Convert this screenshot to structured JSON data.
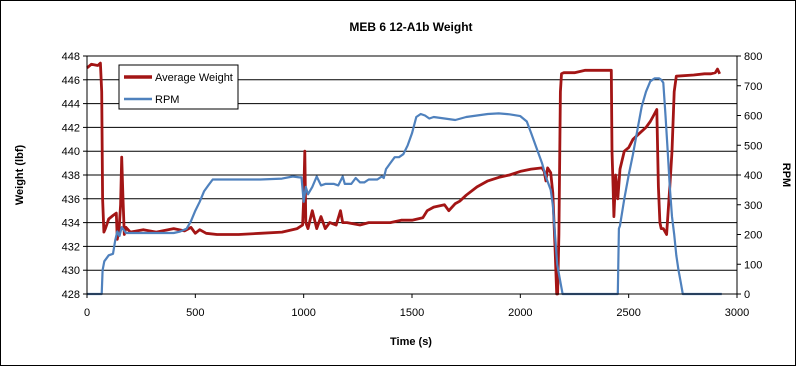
{
  "chart_data": {
    "type": "line",
    "title": "MEB 6 12-A1b Weight",
    "xlabel": "Time (s)",
    "ylabel": "Weight (lbf)",
    "y2label": "RPM",
    "xlim": [
      0,
      3000
    ],
    "ylim": [
      428,
      448
    ],
    "y2lim": [
      0,
      800
    ],
    "x_ticks": [
      0,
      500,
      1000,
      1500,
      2000,
      2500,
      3000
    ],
    "y_ticks": [
      428,
      430,
      432,
      434,
      436,
      438,
      440,
      442,
      444,
      446,
      448
    ],
    "y2_ticks": [
      0,
      100,
      200,
      300,
      400,
      500,
      600,
      700,
      800
    ],
    "grid": "horizontal",
    "legend_position": "top-left",
    "series": [
      {
        "name": "Average Weight",
        "axis": "left",
        "color": "#a31515",
        "points": [
          [
            0,
            447.0
          ],
          [
            20,
            447.3
          ],
          [
            50,
            447.2
          ],
          [
            62,
            447.4
          ],
          [
            68,
            445
          ],
          [
            72,
            436
          ],
          [
            78,
            433.2
          ],
          [
            85,
            433.5
          ],
          [
            100,
            434.3
          ],
          [
            120,
            434.6
          ],
          [
            135,
            434.8
          ],
          [
            140,
            432.6
          ],
          [
            148,
            433.5
          ],
          [
            155,
            435.5
          ],
          [
            160,
            439.5
          ],
          [
            166,
            436
          ],
          [
            172,
            433
          ],
          [
            180,
            433.6
          ],
          [
            200,
            433.2
          ],
          [
            260,
            433.4
          ],
          [
            320,
            433.2
          ],
          [
            400,
            433.5
          ],
          [
            450,
            433.3
          ],
          [
            480,
            433.6
          ],
          [
            500,
            433.1
          ],
          [
            520,
            433.4
          ],
          [
            550,
            433.1
          ],
          [
            600,
            433.0
          ],
          [
            700,
            433.0
          ],
          [
            800,
            433.1
          ],
          [
            900,
            433.2
          ],
          [
            970,
            433.5
          ],
          [
            995,
            433.8
          ],
          [
            1000,
            436
          ],
          [
            1005,
            440
          ],
          [
            1010,
            434
          ],
          [
            1020,
            433.5
          ],
          [
            1040,
            435
          ],
          [
            1060,
            433.5
          ],
          [
            1080,
            434.5
          ],
          [
            1100,
            433.5
          ],
          [
            1120,
            434
          ],
          [
            1150,
            433.8
          ],
          [
            1170,
            435
          ],
          [
            1180,
            434
          ],
          [
            1200,
            434
          ],
          [
            1260,
            433.8
          ],
          [
            1300,
            434
          ],
          [
            1350,
            434.0
          ],
          [
            1400,
            434.0
          ],
          [
            1450,
            434.2
          ],
          [
            1500,
            434.2
          ],
          [
            1550,
            434.4
          ],
          [
            1570,
            435
          ],
          [
            1600,
            435.3
          ],
          [
            1650,
            435.5
          ],
          [
            1670,
            435.0
          ],
          [
            1700,
            435.6
          ],
          [
            1720,
            435.8
          ],
          [
            1750,
            436.3
          ],
          [
            1800,
            437.0
          ],
          [
            1850,
            437.5
          ],
          [
            1900,
            437.8
          ],
          [
            1950,
            438.0
          ],
          [
            2000,
            438.3
          ],
          [
            2050,
            438.5
          ],
          [
            2100,
            438.6
          ],
          [
            2110,
            438.3
          ],
          [
            2118,
            437.5
          ],
          [
            2126,
            438.6
          ],
          [
            2140,
            438.2
          ],
          [
            2150,
            436.5
          ],
          [
            2160,
            432
          ],
          [
            2168,
            428
          ],
          [
            2172,
            428
          ],
          [
            2178,
            433
          ],
          [
            2185,
            445
          ],
          [
            2190,
            446.5
          ],
          [
            2200,
            446.6
          ],
          [
            2250,
            446.6
          ],
          [
            2300,
            446.8
          ],
          [
            2350,
            446.8
          ],
          [
            2400,
            446.8
          ],
          [
            2420,
            446.8
          ],
          [
            2423,
            440
          ],
          [
            2428,
            437
          ],
          [
            2432,
            434.5
          ],
          [
            2440,
            438
          ],
          [
            2450,
            436
          ],
          [
            2460,
            438.5
          ],
          [
            2480,
            440
          ],
          [
            2500,
            440.3
          ],
          [
            2520,
            441
          ],
          [
            2550,
            441.5
          ],
          [
            2580,
            442
          ],
          [
            2600,
            442.5
          ],
          [
            2615,
            443
          ],
          [
            2630,
            443.5
          ],
          [
            2637,
            437
          ],
          [
            2644,
            434
          ],
          [
            2650,
            433.5
          ],
          [
            2660,
            433.5
          ],
          [
            2675,
            433
          ],
          [
            2690,
            437
          ],
          [
            2700,
            440
          ],
          [
            2710,
            445
          ],
          [
            2720,
            446.3
          ],
          [
            2800,
            446.4
          ],
          [
            2850,
            446.5
          ],
          [
            2880,
            446.5
          ],
          [
            2900,
            446.6
          ],
          [
            2910,
            446.9
          ],
          [
            2920,
            446.5
          ]
        ]
      },
      {
        "name": "RPM",
        "axis": "right",
        "color": "#4f81bd",
        "points": [
          [
            0,
            0
          ],
          [
            60,
            0
          ],
          [
            68,
            0
          ],
          [
            72,
            80
          ],
          [
            80,
            110
          ],
          [
            100,
            130
          ],
          [
            120,
            135
          ],
          [
            130,
            180
          ],
          [
            140,
            210
          ],
          [
            150,
            195
          ],
          [
            160,
            225
          ],
          [
            170,
            215
          ],
          [
            180,
            205
          ],
          [
            200,
            205
          ],
          [
            300,
            205
          ],
          [
            400,
            205
          ],
          [
            430,
            210
          ],
          [
            460,
            220
          ],
          [
            480,
            245
          ],
          [
            500,
            280
          ],
          [
            520,
            310
          ],
          [
            540,
            345
          ],
          [
            560,
            365
          ],
          [
            580,
            385
          ],
          [
            620,
            385
          ],
          [
            700,
            385
          ],
          [
            800,
            385
          ],
          [
            900,
            388
          ],
          [
            950,
            395
          ],
          [
            980,
            392
          ],
          [
            990,
            392
          ],
          [
            1000,
            310
          ],
          [
            1010,
            360
          ],
          [
            1020,
            335
          ],
          [
            1040,
            360
          ],
          [
            1060,
            395
          ],
          [
            1080,
            365
          ],
          [
            1100,
            370
          ],
          [
            1120,
            370
          ],
          [
            1140,
            370
          ],
          [
            1160,
            365
          ],
          [
            1180,
            395
          ],
          [
            1190,
            370
          ],
          [
            1220,
            370
          ],
          [
            1240,
            390
          ],
          [
            1260,
            375
          ],
          [
            1280,
            375
          ],
          [
            1300,
            385
          ],
          [
            1340,
            385
          ],
          [
            1360,
            395
          ],
          [
            1370,
            390
          ],
          [
            1380,
            420
          ],
          [
            1400,
            440
          ],
          [
            1420,
            460
          ],
          [
            1440,
            460
          ],
          [
            1460,
            470
          ],
          [
            1480,
            500
          ],
          [
            1500,
            540
          ],
          [
            1520,
            595
          ],
          [
            1540,
            605
          ],
          [
            1560,
            600
          ],
          [
            1580,
            590
          ],
          [
            1600,
            595
          ],
          [
            1650,
            590
          ],
          [
            1700,
            585
          ],
          [
            1750,
            595
          ],
          [
            1800,
            600
          ],
          [
            1850,
            605
          ],
          [
            1900,
            607
          ],
          [
            1950,
            604
          ],
          [
            2000,
            598
          ],
          [
            2030,
            580
          ],
          [
            2050,
            540
          ],
          [
            2080,
            480
          ],
          [
            2100,
            440
          ],
          [
            2120,
            390
          ],
          [
            2140,
            350
          ],
          [
            2150,
            300
          ],
          [
            2160,
            200
          ],
          [
            2170,
            100
          ],
          [
            2180,
            60
          ],
          [
            2190,
            20
          ],
          [
            2195,
            0
          ],
          [
            2300,
            0
          ],
          [
            2440,
            0
          ],
          [
            2450,
            0
          ],
          [
            2455,
            220
          ],
          [
            2460,
            230
          ],
          [
            2480,
            320
          ],
          [
            2500,
            400
          ],
          [
            2520,
            470
          ],
          [
            2540,
            550
          ],
          [
            2560,
            630
          ],
          [
            2580,
            680
          ],
          [
            2600,
            715
          ],
          [
            2620,
            725
          ],
          [
            2640,
            725
          ],
          [
            2650,
            720
          ],
          [
            2660,
            710
          ],
          [
            2670,
            600
          ],
          [
            2680,
            480
          ],
          [
            2690,
            360
          ],
          [
            2700,
            260
          ],
          [
            2710,
            200
          ],
          [
            2720,
            130
          ],
          [
            2730,
            80
          ],
          [
            2740,
            40
          ],
          [
            2750,
            0
          ],
          [
            2850,
            0
          ],
          [
            2930,
            0
          ]
        ]
      }
    ]
  }
}
